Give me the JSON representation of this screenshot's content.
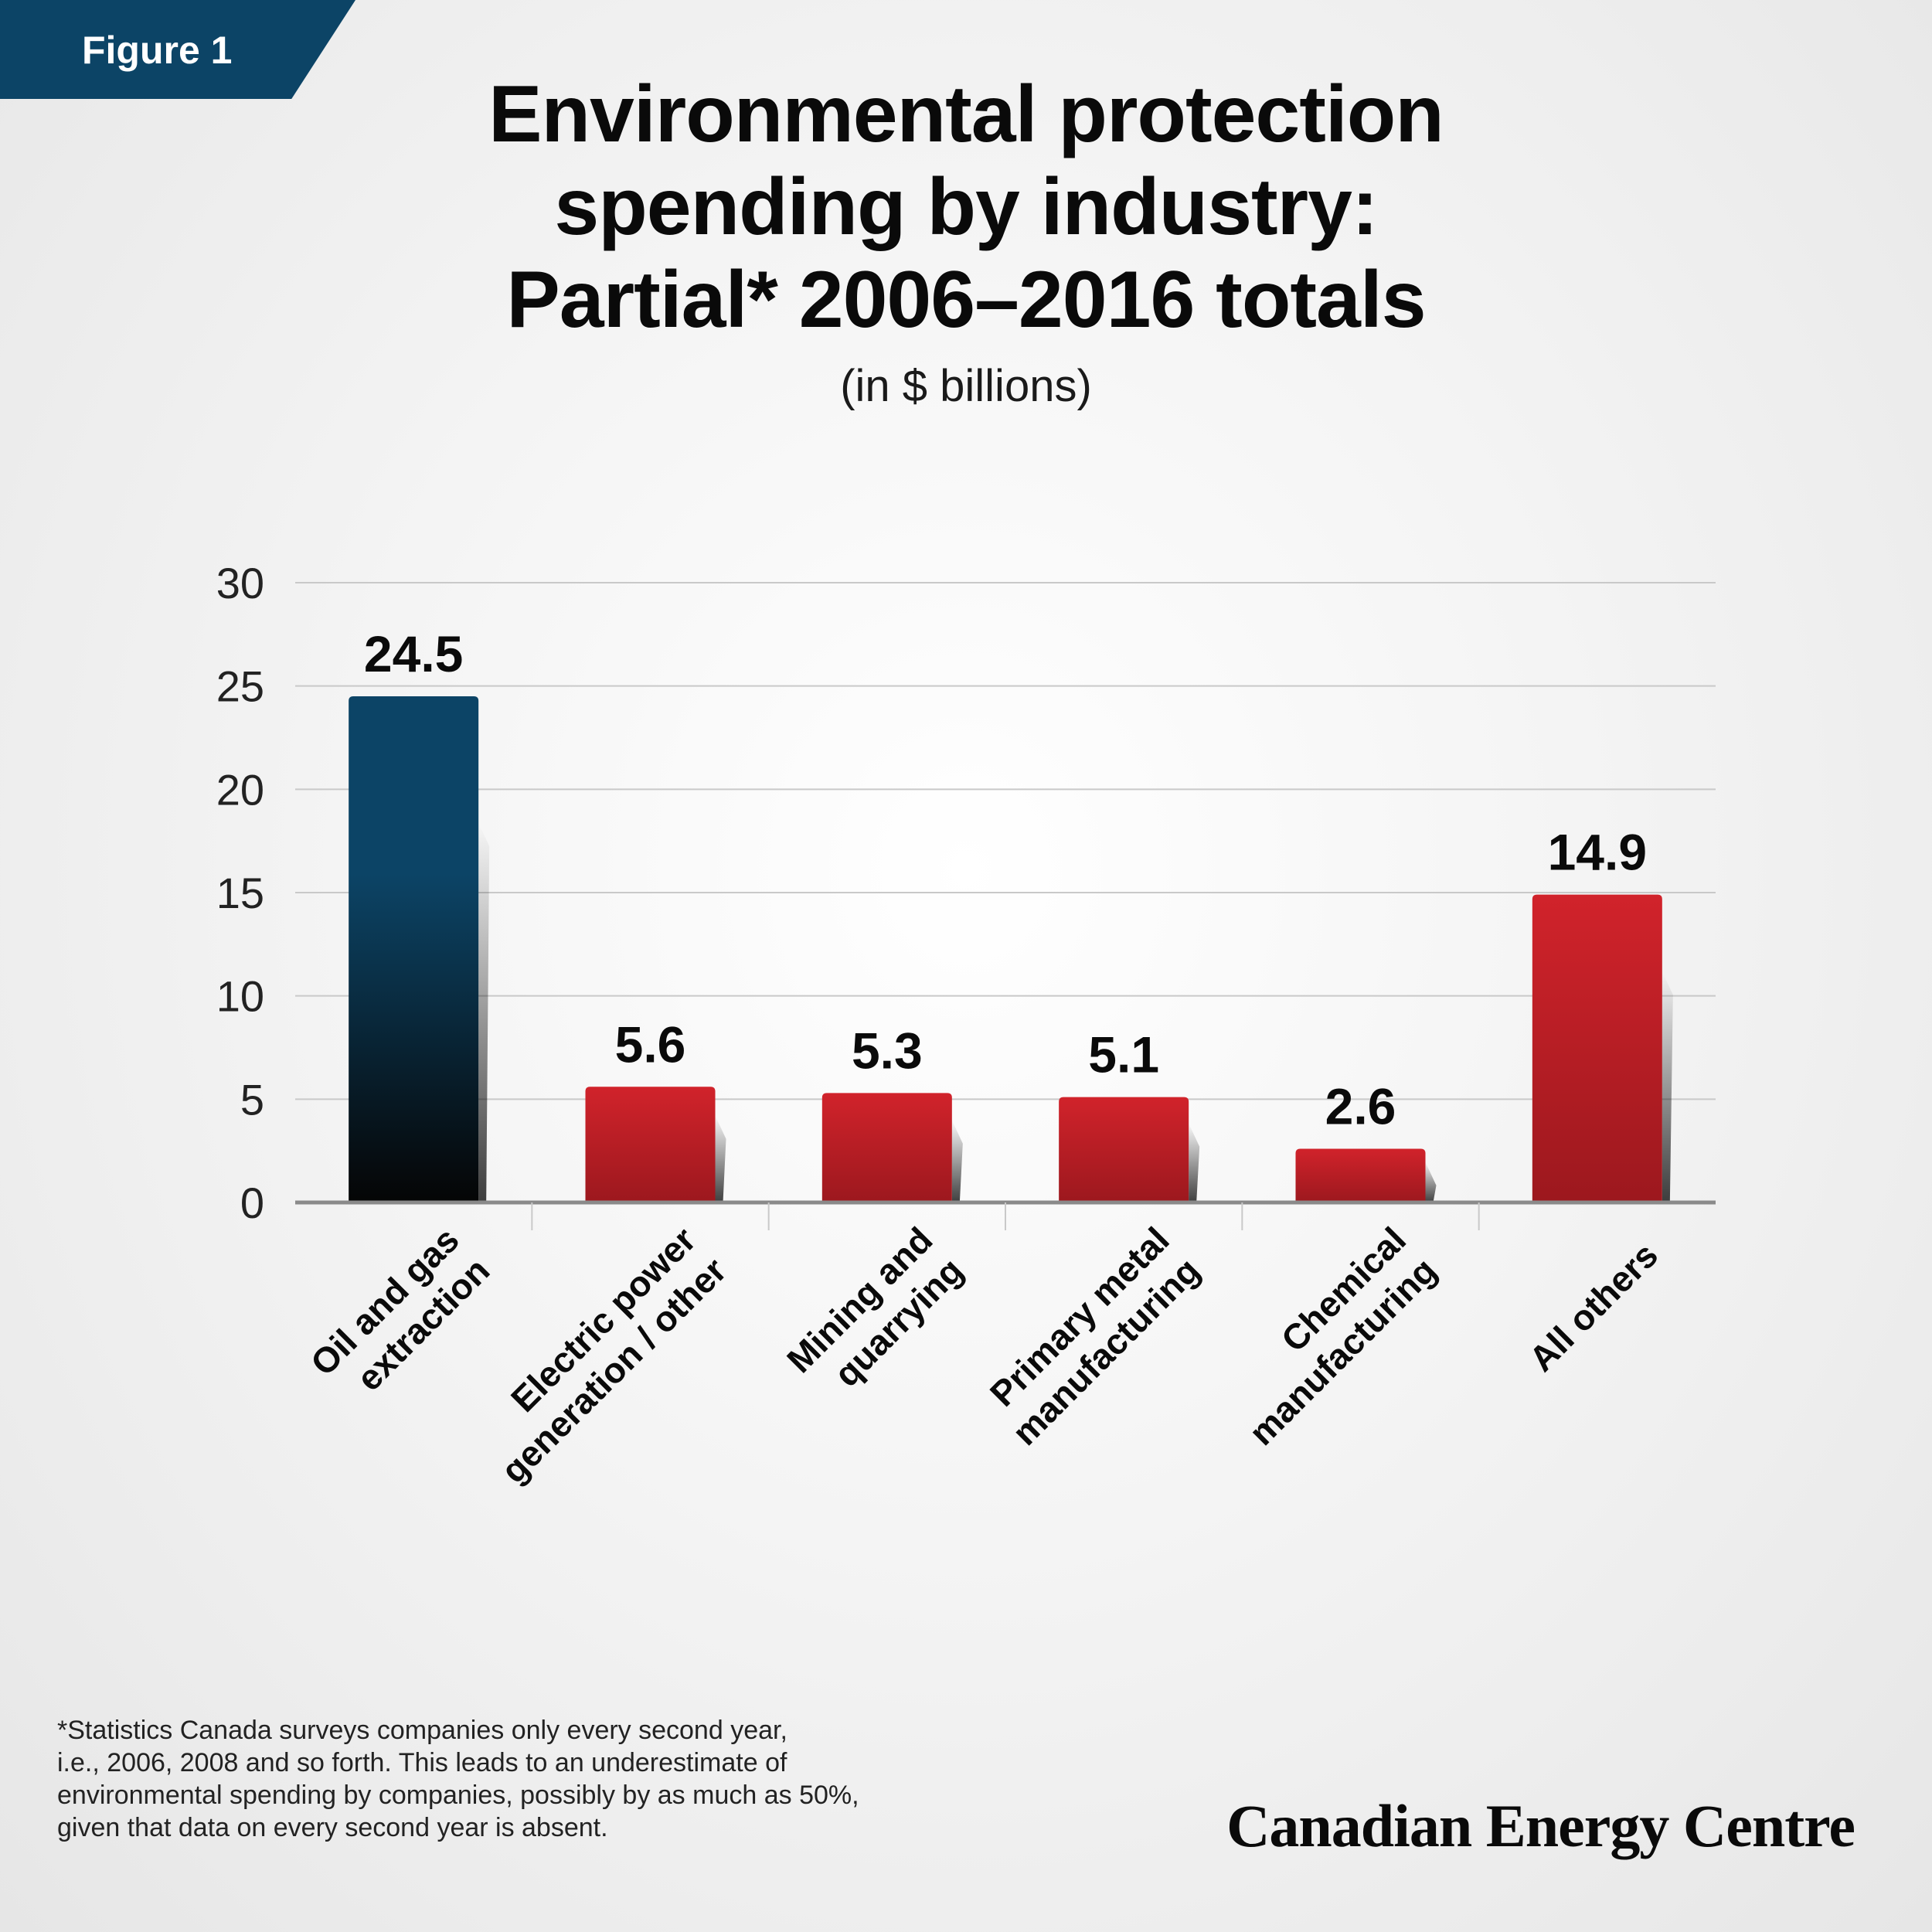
{
  "figure_label": "Figure 1",
  "title_lines": [
    "Environmental protection",
    "spending by industry:",
    "Partial* 2006–2016 totals"
  ],
  "subtitle": "(in $ billions)",
  "footnote_lines": [
    "*Statistics Canada surveys companies only every second year,",
    "i.e., 2006, 2008 and so forth. This leads to an underestimate of",
    "environmental spending by companies, possibly by as much as 50%,",
    "given that data on every second year is absent."
  ],
  "brand": "Canadian Energy Centre",
  "colors": {
    "highlight_top": "#0c4466",
    "highlight_bottom": "#050505",
    "bar_top": "#d1232b",
    "bar_bottom": "#9c181e",
    "grid": "#c9c9c9",
    "axis": "#8a8a8a"
  },
  "chart_data": {
    "type": "bar",
    "categories": [
      [
        "Oil and gas",
        "extraction"
      ],
      [
        "Electric power",
        "generation / other"
      ],
      [
        "Mining and",
        "quarrying"
      ],
      [
        "Primary metal",
        "manufacturing"
      ],
      [
        "Chemical",
        "manufacturing"
      ],
      [
        "All others"
      ]
    ],
    "values": [
      24.5,
      5.6,
      5.3,
      5.1,
      2.6,
      14.9
    ],
    "value_labels": [
      "24.5",
      "5.6",
      "5.3",
      "5.1",
      "2.6",
      "14.9"
    ],
    "highlight_index": 0,
    "ylim": [
      0,
      30
    ],
    "yticks": [
      0,
      5,
      10,
      15,
      20,
      25,
      30
    ],
    "grid": true,
    "legend": "none"
  }
}
